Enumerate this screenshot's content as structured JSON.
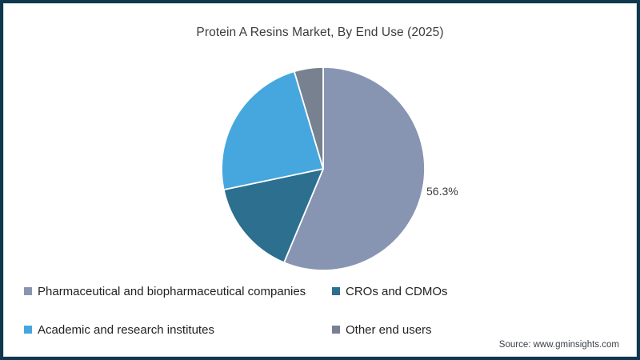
{
  "frame": {
    "border_color": "#0d384e"
  },
  "title": "Protein A Resins Market, By End Use (2025)",
  "chart_data": {
    "type": "pie",
    "title": "Protein A Resins Market, By End Use (2025)",
    "start_angle_deg": 0,
    "direction": "clockwise",
    "legend_position": "bottom",
    "series": [
      {
        "name": "Pharmaceutical and biopharmaceutical companies",
        "value": 56.3,
        "color": "#8795b3"
      },
      {
        "name": "CROs and CDMOs",
        "value": 15.4,
        "color": "#2c6f8f"
      },
      {
        "name": "Academic and research institutes",
        "value": 23.7,
        "color": "#45a7de"
      },
      {
        "name": "Other end users",
        "value": 4.6,
        "color": "#78818f"
      }
    ],
    "data_label": {
      "text": "56.3%",
      "slice": "Pharmaceutical and biopharmaceutical companies",
      "position": "outside-right"
    }
  },
  "source": "Source: www.gminsights.com"
}
